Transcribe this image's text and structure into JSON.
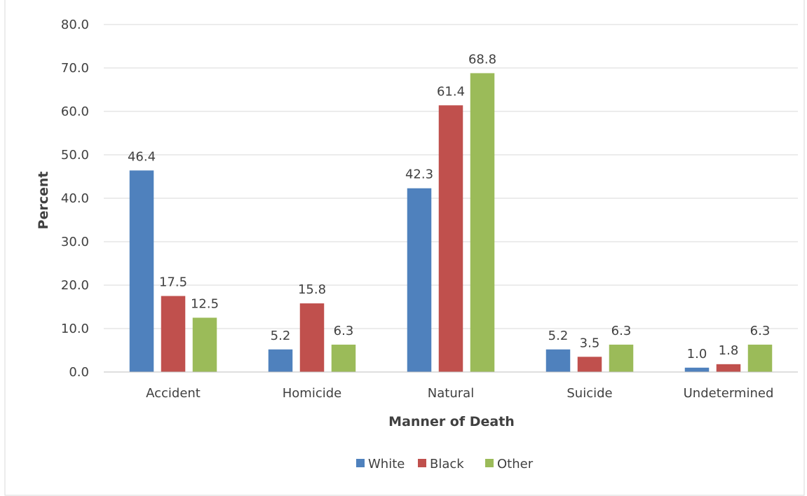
{
  "chart_data": {
    "type": "bar",
    "title": "",
    "xlabel": "Manner of Death",
    "ylabel": "Percent",
    "ylim": [
      0,
      80
    ],
    "ytick_step": 10,
    "grid": true,
    "legend_position": "bottom",
    "categories": [
      "Accident",
      "Homicide",
      "Natural",
      "Suicide",
      "Undetermined"
    ],
    "series": [
      {
        "name": "White",
        "color": "#4f81bd",
        "values": [
          46.4,
          5.2,
          42.3,
          5.2,
          1.0
        ]
      },
      {
        "name": "Black",
        "color": "#c0504d",
        "values": [
          17.5,
          15.8,
          61.4,
          3.5,
          1.8
        ]
      },
      {
        "name": "Other",
        "color": "#9bbb59",
        "values": [
          12.5,
          6.3,
          68.8,
          6.3,
          6.3
        ]
      }
    ]
  }
}
